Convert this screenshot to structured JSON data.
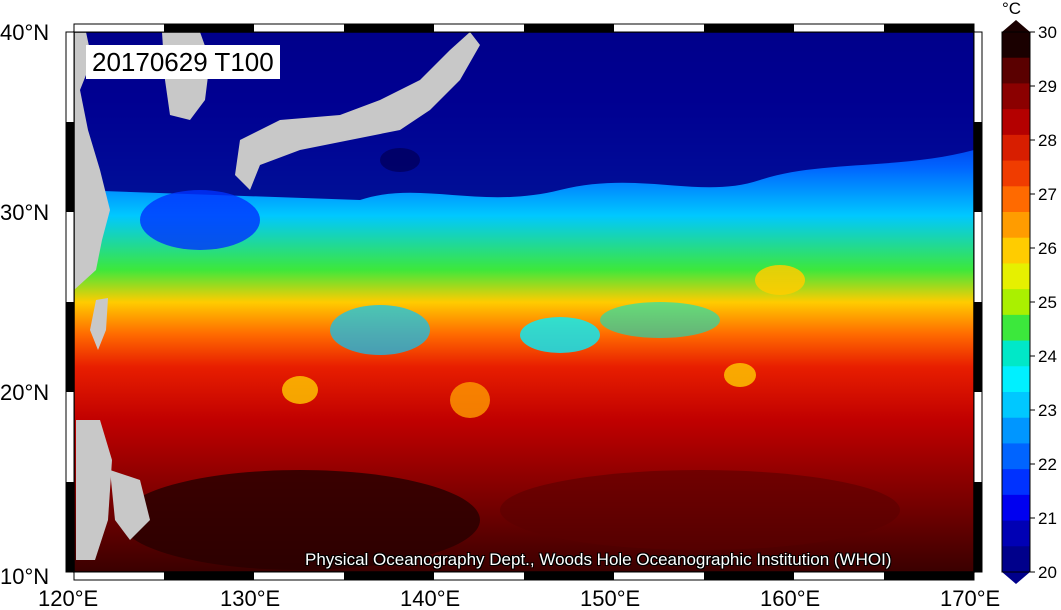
{
  "title": "20170629 T100",
  "credit": "Physical Oceanography Dept., Woods Hole Oceanographic Institution (WHOI)",
  "colorbar": {
    "unit": "°C",
    "ticks": [
      "30",
      "29",
      "28",
      "27",
      "26",
      "25",
      "24",
      "23",
      "22",
      "21",
      "20"
    ],
    "colors": [
      "#1a0000",
      "#5a0000",
      "#8b0000",
      "#b40000",
      "#d81e00",
      "#f03c00",
      "#ff6a00",
      "#ff9c00",
      "#ffcc00",
      "#e6f000",
      "#aaf000",
      "#3ce83c",
      "#00e8c8",
      "#00f0ff",
      "#00c8ff",
      "#0096ff",
      "#0064ff",
      "#0032ff",
      "#0000f0",
      "#0000b4",
      "#00008b"
    ]
  },
  "axes": {
    "lon_labels": [
      "120°E",
      "130°E",
      "140°E",
      "150°E",
      "160°E",
      "170°E"
    ],
    "lat_labels": [
      "40°N",
      "30°N",
      "20°N",
      "10°N"
    ]
  },
  "colors": {
    "land": "#c8c8c8",
    "deep_cold": "#00008b",
    "warm": "#c80000",
    "hot": "#3a0000"
  }
}
